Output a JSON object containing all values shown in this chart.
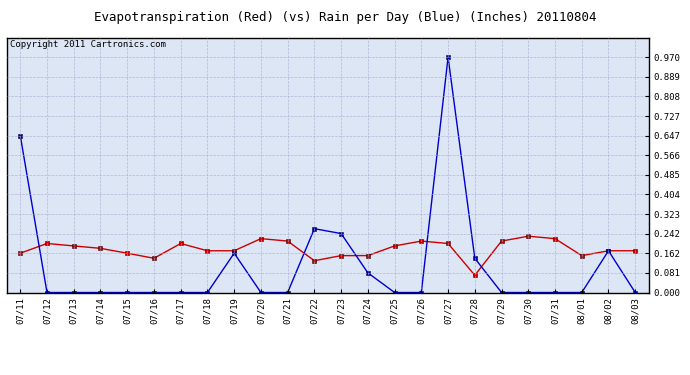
{
  "title": "Evapotranspiration (Red) (vs) Rain per Day (Blue) (Inches) 20110804",
  "copyright": "Copyright 2011 Cartronics.com",
  "x_labels": [
    "07/11",
    "07/12",
    "07/13",
    "07/14",
    "07/15",
    "07/16",
    "07/17",
    "07/18",
    "07/19",
    "07/20",
    "07/21",
    "07/22",
    "07/23",
    "07/24",
    "07/25",
    "07/26",
    "07/27",
    "07/28",
    "07/29",
    "07/30",
    "07/31",
    "08/01",
    "08/02",
    "08/03"
  ],
  "red_data": [
    0.162,
    0.202,
    0.192,
    0.182,
    0.162,
    0.141,
    0.202,
    0.172,
    0.172,
    0.222,
    0.212,
    0.131,
    0.152,
    0.152,
    0.192,
    0.212,
    0.202,
    0.071,
    0.212,
    0.232,
    0.222,
    0.152,
    0.172,
    0.172
  ],
  "blue_data": [
    0.647,
    0.0,
    0.0,
    0.0,
    0.0,
    0.0,
    0.0,
    0.0,
    0.162,
    0.0,
    0.0,
    0.263,
    0.243,
    0.081,
    0.0,
    0.0,
    0.97,
    0.141,
    0.0,
    0.0,
    0.0,
    0.0,
    0.172,
    0.0
  ],
  "ylim": [
    0.0,
    1.051
  ],
  "yticks": [
    0.0,
    0.081,
    0.162,
    0.242,
    0.323,
    0.404,
    0.485,
    0.566,
    0.647,
    0.727,
    0.808,
    0.889,
    0.97
  ],
  "red_color": "#cc0000",
  "blue_color": "#0000cc",
  "bg_color": "#ffffff",
  "plot_bg_color": "#dce6f5",
  "grid_color": "#aaaacc",
  "title_fontsize": 9,
  "copyright_fontsize": 6.5,
  "tick_fontsize": 6.5,
  "ytick_fontsize": 6.5
}
